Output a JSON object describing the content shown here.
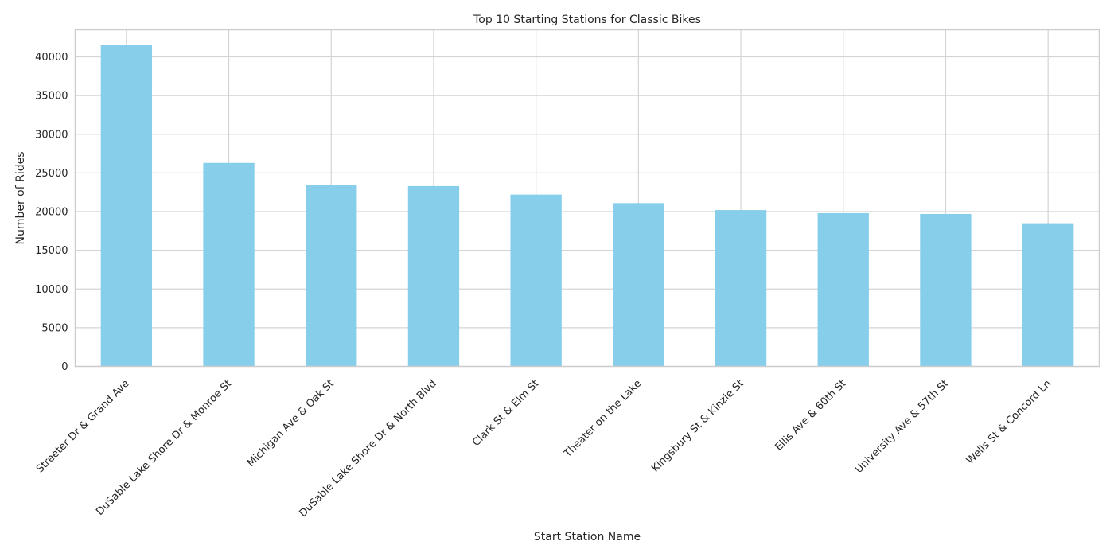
{
  "chart_data": {
    "type": "bar",
    "title": "Top 10 Starting Stations for Classic Bikes",
    "xlabel": "Start Station Name",
    "ylabel": "Number of Rides",
    "categories": [
      "Streeter Dr & Grand Ave",
      "DuSable Lake Shore Dr & Monroe St",
      "Michigan Ave & Oak St",
      "DuSable Lake Shore Dr & North Blvd",
      "Clark St & Elm St",
      "Theater on the Lake",
      "Kingsbury St & Kinzie St",
      "Ellis Ave & 60th St",
      "University Ave & 57th St",
      "Wells St & Concord Ln"
    ],
    "values": [
      41500,
      26300,
      23400,
      23300,
      22200,
      21100,
      20200,
      19800,
      19700,
      18500
    ],
    "ylim": [
      0,
      43500
    ],
    "yticks": [
      0,
      5000,
      10000,
      15000,
      20000,
      25000,
      30000,
      35000,
      40000
    ],
    "grid": true,
    "colors": {
      "bar": "#87ceeb"
    }
  }
}
